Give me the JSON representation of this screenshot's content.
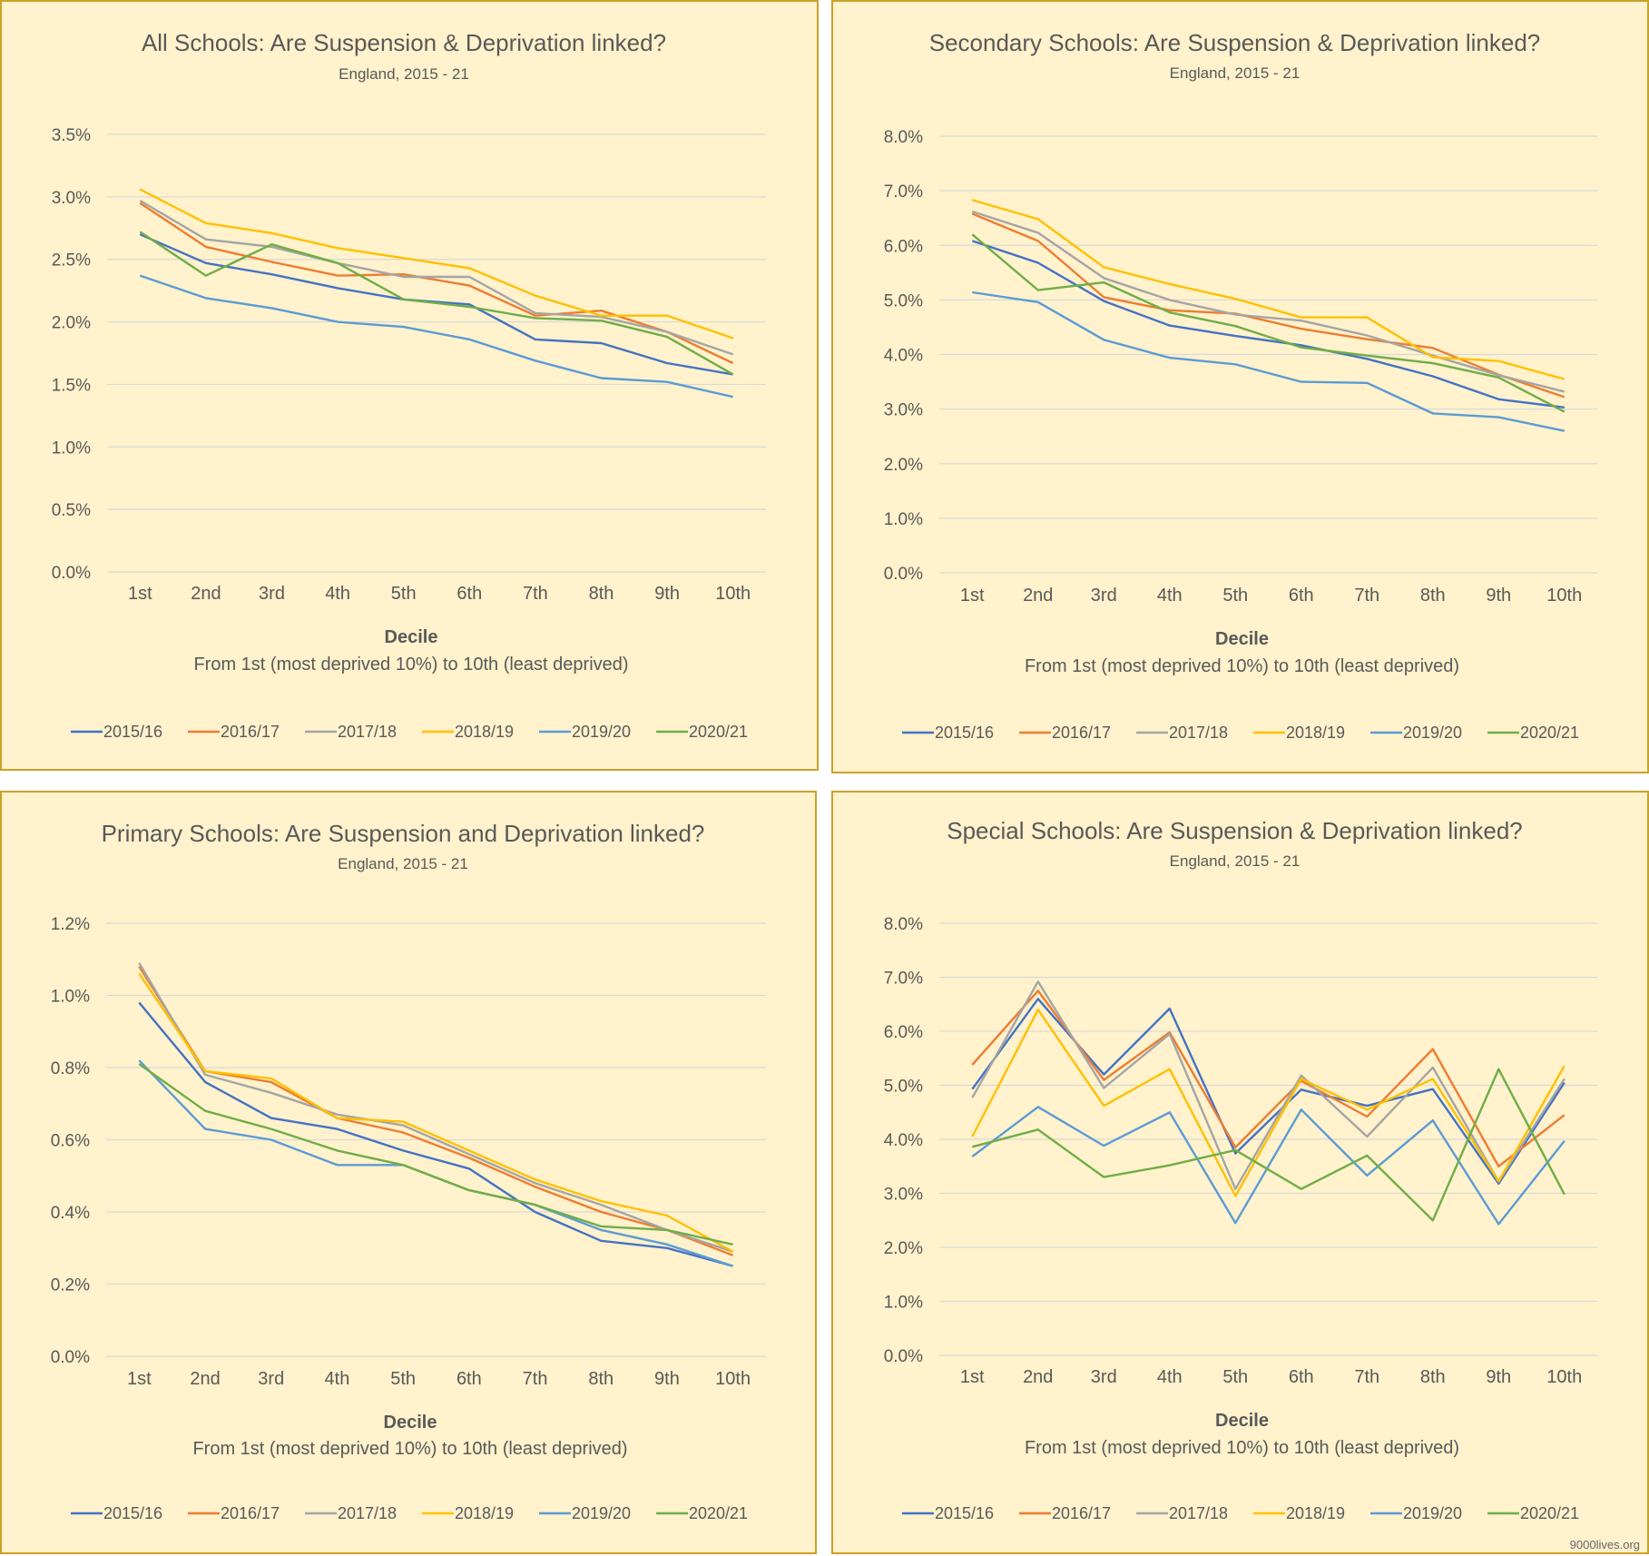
{
  "colors": {
    "background": "#fff2cc",
    "border": "#c9a227",
    "grid": "#d9d9d9",
    "title_text": "#595959",
    "axis_text": "#595959"
  },
  "series_colors": [
    "#4472c4",
    "#ed7d31",
    "#a5a5a5",
    "#ffc000",
    "#5b9bd5",
    "#70ad47"
  ],
  "footer": {
    "source": "9000lives.org"
  },
  "chart_data": [
    {
      "id": "all",
      "type": "line",
      "title": "All Schools: Are Suspension & Deprivation linked?",
      "subtitle": "England, 2015 - 21",
      "xlabel": "Decile",
      "xlabel_sub": "From 1st (most deprived 10%) to 10th (least deprived)",
      "categories": [
        "1st",
        "2nd",
        "3rd",
        "4th",
        "5th",
        "6th",
        "7th",
        "8th",
        "9th",
        "10th"
      ],
      "ylim": [
        0,
        3.5
      ],
      "yticks": [
        0,
        0.5,
        1.0,
        1.5,
        2.0,
        2.5,
        3.0,
        3.5
      ],
      "ytick_labels": [
        "0.0%",
        "0.5%",
        "1.0%",
        "1.5%",
        "2.0%",
        "2.5%",
        "3.0%",
        "3.5%"
      ],
      "series": [
        {
          "name": "2015/16",
          "values": [
            2.7,
            2.47,
            2.38,
            2.27,
            2.18,
            2.14,
            1.86,
            1.83,
            1.67,
            1.58
          ]
        },
        {
          "name": "2016/17",
          "values": [
            2.95,
            2.6,
            2.48,
            2.37,
            2.38,
            2.29,
            2.05,
            2.09,
            1.92,
            1.67
          ]
        },
        {
          "name": "2017/18",
          "values": [
            2.97,
            2.66,
            2.6,
            2.47,
            2.36,
            2.36,
            2.07,
            2.04,
            1.92,
            1.74
          ]
        },
        {
          "name": "2018/19",
          "values": [
            3.06,
            2.79,
            2.71,
            2.59,
            2.51,
            2.43,
            2.21,
            2.05,
            2.05,
            1.87
          ]
        },
        {
          "name": "2019/20",
          "values": [
            2.37,
            2.19,
            2.11,
            2.0,
            1.96,
            1.86,
            1.69,
            1.55,
            1.52,
            1.4
          ]
        },
        {
          "name": "2020/21",
          "values": [
            2.72,
            2.37,
            2.62,
            2.47,
            2.18,
            2.12,
            2.03,
            2.01,
            1.88,
            1.58
          ]
        }
      ]
    },
    {
      "id": "secondary",
      "type": "line",
      "title": "Secondary Schools: Are Suspension & Deprivation linked?",
      "subtitle": "England, 2015 - 21",
      "xlabel": "Decile",
      "xlabel_sub": "From 1st (most deprived 10%) to 10th (least deprived)",
      "categories": [
        "1st",
        "2nd",
        "3rd",
        "4th",
        "5th",
        "6th",
        "7th",
        "8th",
        "9th",
        "10th"
      ],
      "ylim": [
        0,
        8.0
      ],
      "yticks": [
        0,
        1.0,
        2.0,
        3.0,
        4.0,
        5.0,
        6.0,
        7.0,
        8.0
      ],
      "ytick_labels": [
        "0.0%",
        "1.0%",
        "2.0%",
        "3.0%",
        "4.0%",
        "5.0%",
        "6.0%",
        "7.0%",
        "8.0%"
      ],
      "series": [
        {
          "name": "2015/16",
          "values": [
            6.08,
            5.68,
            4.98,
            4.53,
            4.34,
            4.17,
            3.92,
            3.6,
            3.18,
            3.03
          ]
        },
        {
          "name": "2016/17",
          "values": [
            6.58,
            6.08,
            5.05,
            4.81,
            4.75,
            4.47,
            4.28,
            4.12,
            3.63,
            3.22
          ]
        },
        {
          "name": "2017/18",
          "values": [
            6.62,
            6.23,
            5.4,
            5.0,
            4.73,
            4.62,
            4.35,
            3.98,
            3.62,
            3.32
          ]
        },
        {
          "name": "2018/19",
          "values": [
            6.83,
            6.48,
            5.6,
            5.29,
            5.02,
            4.68,
            4.68,
            3.95,
            3.88,
            3.55
          ]
        },
        {
          "name": "2019/20",
          "values": [
            5.14,
            4.96,
            4.27,
            3.94,
            3.82,
            3.5,
            3.48,
            2.92,
            2.85,
            2.6
          ]
        },
        {
          "name": "2020/21",
          "values": [
            6.2,
            5.18,
            5.32,
            4.77,
            4.52,
            4.13,
            3.98,
            3.84,
            3.58,
            2.95
          ]
        }
      ]
    },
    {
      "id": "primary",
      "type": "line",
      "title": "Primary Schools: Are Suspension and Deprivation linked?",
      "subtitle": "England, 2015 - 21",
      "xlabel": "Decile",
      "xlabel_sub": "From 1st (most deprived 10%) to 10th (least deprived)",
      "categories": [
        "1st",
        "2nd",
        "3rd",
        "4th",
        "5th",
        "6th",
        "7th",
        "8th",
        "9th",
        "10th"
      ],
      "ylim": [
        0,
        1.2
      ],
      "yticks": [
        0,
        0.2,
        0.4,
        0.6,
        0.8,
        1.0,
        1.2
      ],
      "ytick_labels": [
        "0.0%",
        "0.2%",
        "0.4%",
        "0.6%",
        "0.8%",
        "1.0%",
        "1.2%"
      ],
      "series": [
        {
          "name": "2015/16",
          "values": [
            0.98,
            0.76,
            0.66,
            0.63,
            0.57,
            0.52,
            0.4,
            0.32,
            0.3,
            0.25
          ]
        },
        {
          "name": "2016/17",
          "values": [
            1.08,
            0.79,
            0.76,
            0.66,
            0.62,
            0.55,
            0.47,
            0.4,
            0.35,
            0.28
          ]
        },
        {
          "name": "2017/18",
          "values": [
            1.09,
            0.78,
            0.73,
            0.67,
            0.64,
            0.56,
            0.48,
            0.42,
            0.35,
            0.29
          ]
        },
        {
          "name": "2018/19",
          "values": [
            1.06,
            0.79,
            0.77,
            0.66,
            0.65,
            0.57,
            0.49,
            0.43,
            0.39,
            0.29
          ]
        },
        {
          "name": "2019/20",
          "values": [
            0.82,
            0.63,
            0.6,
            0.53,
            0.53,
            0.46,
            0.42,
            0.35,
            0.31,
            0.25
          ]
        },
        {
          "name": "2020/21",
          "values": [
            0.81,
            0.68,
            0.63,
            0.57,
            0.53,
            0.46,
            0.42,
            0.36,
            0.35,
            0.31
          ]
        }
      ]
    },
    {
      "id": "special",
      "type": "line",
      "title": "Special Schools: Are Suspension & Deprivation linked?",
      "subtitle": "England, 2015 - 21",
      "xlabel": "Decile",
      "xlabel_sub": "From 1st (most deprived 10%) to 10th (least deprived)",
      "categories": [
        "1st",
        "2nd",
        "3rd",
        "4th",
        "5th",
        "6th",
        "7th",
        "8th",
        "9th",
        "10th"
      ],
      "ylim": [
        0,
        8.0
      ],
      "yticks": [
        0,
        1.0,
        2.0,
        3.0,
        4.0,
        5.0,
        6.0,
        7.0,
        8.0
      ],
      "ytick_labels": [
        "0.0%",
        "1.0%",
        "2.0%",
        "3.0%",
        "4.0%",
        "5.0%",
        "6.0%",
        "7.0%",
        "8.0%"
      ],
      "series": [
        {
          "name": "2015/16",
          "values": [
            4.93,
            6.6,
            5.2,
            6.42,
            3.74,
            4.92,
            4.62,
            4.93,
            3.18,
            5.05
          ]
        },
        {
          "name": "2016/17",
          "values": [
            5.38,
            6.75,
            5.1,
            5.98,
            3.85,
            5.08,
            4.42,
            5.67,
            3.5,
            4.45
          ]
        },
        {
          "name": "2017/18",
          "values": [
            4.77,
            6.92,
            4.95,
            5.95,
            3.08,
            5.18,
            4.05,
            5.33,
            3.22,
            5.12
          ]
        },
        {
          "name": "2018/19",
          "values": [
            4.05,
            6.4,
            4.62,
            5.3,
            2.95,
            5.12,
            4.55,
            5.12,
            3.22,
            5.36
          ]
        },
        {
          "name": "2019/20",
          "values": [
            3.68,
            4.6,
            3.88,
            4.5,
            2.45,
            4.55,
            3.33,
            4.35,
            2.43,
            3.97
          ]
        },
        {
          "name": "2020/21",
          "values": [
            3.86,
            4.18,
            3.3,
            3.52,
            3.8,
            3.08,
            3.7,
            2.5,
            5.3,
            2.98
          ]
        }
      ]
    }
  ]
}
